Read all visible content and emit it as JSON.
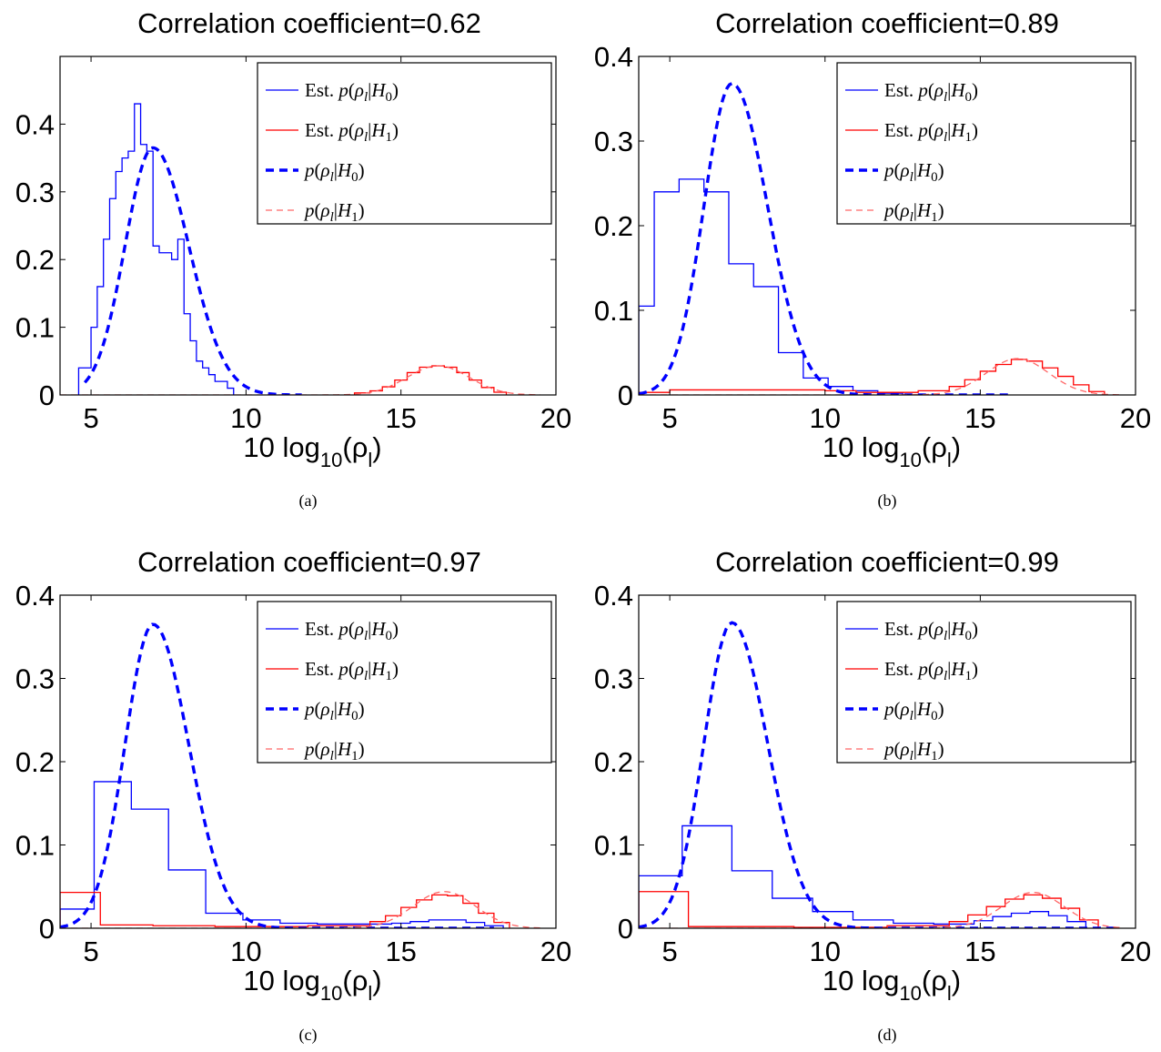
{
  "colors": {
    "h0": "#0000ff",
    "h1": "#ff0000",
    "h1_dashed": "#ff6666"
  },
  "legend_labels": [
    "Est. p(ρl|H0)",
    "Est. p(ρl|H1)",
    "p(ρl|H0)",
    "p(ρl|H1)"
  ],
  "chart_data": [
    {
      "type": "line",
      "panel": "(a)",
      "title": "Correlation coefficient=0.62",
      "xlabel": "10 log10(ρl)",
      "ylabel": "",
      "xlim": [
        4,
        20
      ],
      "ylim": [
        0,
        0.5
      ],
      "xticks": [
        5,
        10,
        15,
        20
      ],
      "yticks": [
        0,
        0.1,
        0.2,
        0.3,
        0.4
      ],
      "legend_position": "top-right",
      "series": [
        {
          "name": "Est. p(ρl|H0)",
          "style": "hist",
          "color": "#0000ff",
          "x": [
            4.6,
            5.0,
            5.2,
            5.4,
            5.6,
            5.8,
            6.0,
            6.2,
            6.4,
            6.6,
            6.8,
            7.0,
            7.2,
            7.4,
            7.6,
            7.8,
            8.0,
            8.2,
            8.4,
            8.6,
            8.8,
            9.0,
            9.2,
            9.4,
            9.6
          ],
          "y": [
            0.04,
            0.1,
            0.16,
            0.23,
            0.29,
            0.33,
            0.35,
            0.36,
            0.43,
            0.37,
            0.36,
            0.22,
            0.21,
            0.21,
            0.2,
            0.23,
            0.12,
            0.08,
            0.05,
            0.04,
            0.03,
            0.02,
            0.02,
            0.01,
            0.0
          ]
        },
        {
          "name": "Est. p(ρl|H1)",
          "style": "hist",
          "color": "#ff0000",
          "x": [
            13.5,
            14.0,
            14.4,
            14.8,
            15.2,
            15.6,
            16.0,
            16.4,
            16.8,
            17.2,
            17.6,
            18.0,
            18.4
          ],
          "y": [
            0.003,
            0.006,
            0.012,
            0.022,
            0.033,
            0.041,
            0.043,
            0.041,
            0.033,
            0.022,
            0.011,
            0.004,
            0.0
          ]
        },
        {
          "name": "p(ρl|H0)",
          "style": "dashed-curve",
          "color": "#0000ff",
          "peak_x": 7.0,
          "peak_y": 0.365,
          "sigma_left": 0.9,
          "sigma_right": 1.15,
          "x_start": 4.8,
          "x_end": 11.8
        },
        {
          "name": "p(ρl|H1)",
          "style": "dashed-curve",
          "color": "#ff6666",
          "peak_x": 16.2,
          "peak_y": 0.043,
          "sigma_left": 1.0,
          "sigma_right": 1.0,
          "x_start": 4.0,
          "x_end": 19.5
        }
      ]
    },
    {
      "type": "line",
      "panel": "(b)",
      "title": "Correlation coefficient=0.89",
      "xlabel": "10 log10(ρl)",
      "ylabel": "",
      "xlim": [
        4,
        20
      ],
      "ylim": [
        0,
        0.4
      ],
      "xticks": [
        5,
        10,
        15,
        20
      ],
      "yticks": [
        0,
        0.1,
        0.2,
        0.3,
        0.4
      ],
      "legend_position": "top-right",
      "series": [
        {
          "name": "Est. p(ρl|H0)",
          "style": "hist",
          "color": "#0000ff",
          "x": [
            4.0,
            4.5,
            5.3,
            6.1,
            6.9,
            7.7,
            8.5,
            9.3,
            10.1,
            10.9,
            11.7,
            12.5
          ],
          "y": [
            0.105,
            0.24,
            0.255,
            0.24,
            0.155,
            0.128,
            0.05,
            0.02,
            0.01,
            0.005,
            0.002,
            0.0
          ]
        },
        {
          "name": "Est. p(ρl|H1)",
          "style": "hist",
          "color": "#ff0000",
          "x": [
            4.0,
            5.0,
            9.0,
            10.0,
            11.0,
            13.0,
            14.0,
            14.5,
            15.0,
            15.5,
            16.0,
            16.5,
            17.0,
            17.5,
            18.0,
            18.5,
            19.0
          ],
          "y": [
            0.003,
            0.006,
            0.006,
            0.005,
            0.003,
            0.005,
            0.01,
            0.018,
            0.028,
            0.036,
            0.042,
            0.04,
            0.032,
            0.022,
            0.012,
            0.004,
            0.0
          ]
        },
        {
          "name": "p(ρl|H0)",
          "style": "dashed-curve",
          "color": "#0000ff",
          "peak_x": 7.0,
          "peak_y": 0.368,
          "sigma_left": 0.9,
          "sigma_right": 1.15,
          "x_start": 4.0,
          "x_end": 16.0
        },
        {
          "name": "p(ρl|H1)",
          "style": "dashed-curve",
          "color": "#ff6666",
          "peak_x": 16.2,
          "peak_y": 0.043,
          "sigma_left": 1.0,
          "sigma_right": 1.0,
          "x_start": 4.0,
          "x_end": 19.5
        }
      ]
    },
    {
      "type": "line",
      "panel": "(c)",
      "title": "Correlation coefficient=0.97",
      "xlabel": "10 log10(ρl)",
      "ylabel": "",
      "xlim": [
        4,
        20
      ],
      "ylim": [
        0,
        0.4
      ],
      "xticks": [
        5,
        10,
        15,
        20
      ],
      "yticks": [
        0,
        0.1,
        0.2,
        0.3,
        0.4
      ],
      "legend_position": "top-right",
      "series": [
        {
          "name": "Est. p(ρl|H0)",
          "style": "hist",
          "color": "#0000ff",
          "x": [
            4.0,
            5.1,
            6.3,
            7.5,
            8.7,
            9.9,
            11.1,
            12.3,
            13.5,
            14.7,
            15.3,
            15.9,
            16.5,
            17.1,
            17.7,
            18.3
          ],
          "y": [
            0.023,
            0.176,
            0.143,
            0.07,
            0.018,
            0.01,
            0.006,
            0.005,
            0.005,
            0.006,
            0.008,
            0.01,
            0.01,
            0.007,
            0.003,
            0.0
          ]
        },
        {
          "name": "Est. p(ρl|H1)",
          "style": "hist",
          "color": "#ff0000",
          "x": [
            4.0,
            5.3,
            7.0,
            9.0,
            12.0,
            14.0,
            14.5,
            15.0,
            15.5,
            16.0,
            16.5,
            17.0,
            17.5,
            18.0,
            18.5
          ],
          "y": [
            0.043,
            0.004,
            0.003,
            0.002,
            0.003,
            0.008,
            0.015,
            0.025,
            0.034,
            0.04,
            0.039,
            0.03,
            0.018,
            0.007,
            0.0
          ]
        },
        {
          "name": "p(ρl|H0)",
          "style": "dashed-curve",
          "color": "#0000ff",
          "peak_x": 7.0,
          "peak_y": 0.365,
          "sigma_left": 0.9,
          "sigma_right": 1.15,
          "x_start": 4.0,
          "x_end": 18.0
        },
        {
          "name": "p(ρl|H1)",
          "style": "dashed-curve",
          "color": "#ff6666",
          "peak_x": 16.4,
          "peak_y": 0.044,
          "sigma_left": 1.0,
          "sigma_right": 1.0,
          "x_start": 4.0,
          "x_end": 19.5
        }
      ]
    },
    {
      "type": "line",
      "panel": "(d)",
      "title": "Correlation coefficient=0.99",
      "xlabel": "10 log10(ρl)",
      "ylabel": "",
      "xlim": [
        4,
        20
      ],
      "ylim": [
        0,
        0.4
      ],
      "xticks": [
        5,
        10,
        15,
        20
      ],
      "yticks": [
        0,
        0.1,
        0.2,
        0.3,
        0.4
      ],
      "legend_position": "top-right",
      "series": [
        {
          "name": "Est. p(ρl|H0)",
          "style": "hist",
          "color": "#0000ff",
          "x": [
            4.0,
            5.4,
            7.0,
            8.3,
            9.6,
            10.9,
            12.2,
            13.5,
            14.8,
            15.4,
            16.0,
            16.6,
            17.2,
            17.8,
            18.4
          ],
          "y": [
            0.063,
            0.123,
            0.069,
            0.036,
            0.02,
            0.01,
            0.006,
            0.005,
            0.009,
            0.014,
            0.018,
            0.02,
            0.015,
            0.008,
            0.0
          ]
        },
        {
          "name": "Est. p(ρl|H1)",
          "style": "hist",
          "color": "#ff0000",
          "x": [
            4.0,
            5.6,
            9.0,
            12.0,
            14.0,
            14.6,
            15.2,
            15.8,
            16.4,
            17.0,
            17.6,
            18.2,
            18.8
          ],
          "y": [
            0.044,
            0.002,
            0.001,
            0.003,
            0.008,
            0.016,
            0.026,
            0.035,
            0.04,
            0.036,
            0.024,
            0.01,
            0.0
          ]
        },
        {
          "name": "p(ρl|H0)",
          "style": "dashed-curve",
          "color": "#0000ff",
          "peak_x": 7.0,
          "peak_y": 0.367,
          "sigma_left": 0.9,
          "sigma_right": 1.15,
          "x_start": 4.0,
          "x_end": 19.5
        },
        {
          "name": "p(ρl|H1)",
          "style": "dashed-curve",
          "color": "#ff6666",
          "peak_x": 16.7,
          "peak_y": 0.043,
          "sigma_left": 1.0,
          "sigma_right": 1.0,
          "x_start": 4.0,
          "x_end": 19.5
        }
      ]
    }
  ]
}
